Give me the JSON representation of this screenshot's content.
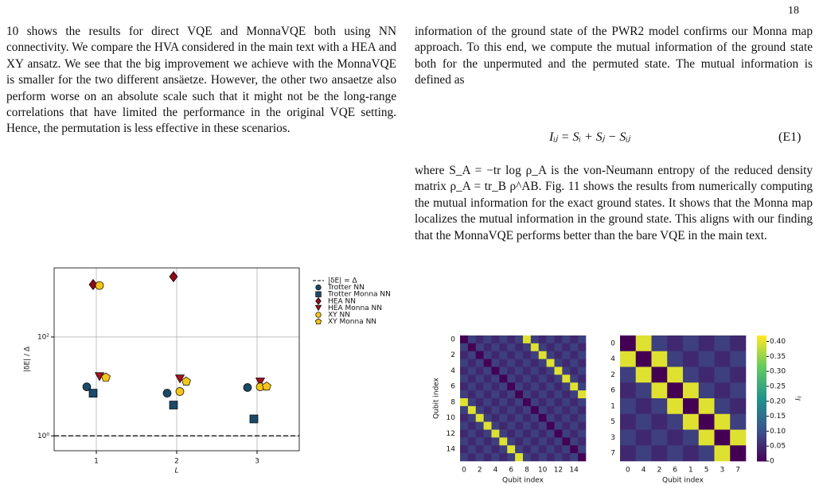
{
  "page_number": "18",
  "left_text": "10 shows the results for direct VQE and MonnaVQE both using NN connectivity. We compare the HVA considered in the main text with a HEA and XY ansatz. We see that the big improvement we achieve with the MonnaVQE is smaller for the two different ansäetze. However, the other two ansaetze also perform worse on an absolute scale such that it might not be the long-range correlations that have limited the performance in the original VQE setting. Hence, the permutation is less effective in these scenarios.",
  "right_text_1": "information of the ground state of the PWR2 model confirms our Monna map approach. To this end, we compute the mutual information of the ground state both for the unpermuted and the permuted state. The mutual information is defined as",
  "equation": {
    "text": "Iᵢⱼ = Sᵢ + Sⱼ − Sᵢⱼ",
    "label": "(E1)"
  },
  "right_text_2": "where S_A = −tr log ρ_A is the von-Neumann entropy of the reduced density matrix ρ_A = tr_B ρ^AB. Fig. 11 shows the results from numerically computing the mutual information for the exact ground states. It shows that the Monna map localizes the mutual information in the ground state. This aligns with our finding that the MonnaVQE performs better than the bare VQE in the main text.",
  "chart_data": [
    {
      "type": "scatter",
      "xlabel": "L",
      "ylabel": "|δE| / Δ",
      "log_y": true,
      "grid": true,
      "x": [
        1,
        2,
        3
      ],
      "xlim": [
        0.475,
        3.525
      ],
      "xticks": [
        1,
        2,
        3
      ],
      "ylim": [
        0.5,
        2500
      ],
      "yticks": [
        {
          "value": 1,
          "label": "10⁰"
        },
        {
          "value": 100,
          "label": "10²"
        }
      ],
      "reference_line": {
        "name": "|δE| = Δ",
        "value": 1,
        "color": "#000000"
      },
      "series": [
        {
          "name": "Trotter NN",
          "color": "#1b4a68",
          "marker": "circle",
          "values": [
            9.8,
            7.3,
            9.5
          ]
        },
        {
          "name": "Trotter Monna NN",
          "color": "#1b4a68",
          "marker": "square",
          "values": [
            7.3,
            4.2,
            2.2
          ]
        },
        {
          "name": "HEA NN",
          "color": "#8b0a1a",
          "marker": "diamond",
          "values": [
            1150,
            1660,
            null
          ]
        },
        {
          "name": "HEA Monna NN",
          "color": "#a3101e",
          "marker": "triangle-down",
          "values": [
            15.8,
            14.2,
            12.3
          ]
        },
        {
          "name": "XY NN",
          "color": "#f5c518",
          "marker": "circle",
          "values": [
            1100,
            7.9,
            9.8
          ]
        },
        {
          "name": "XY Monna NN",
          "color": "#f5c518",
          "marker": "pentagon",
          "values": [
            15.2,
            12.6,
            10
          ]
        }
      ]
    },
    {
      "type": "heatmap",
      "xlabel": "Qubit index",
      "ylabel": "Qubit index",
      "colormap": "viridis",
      "clim": [
        0,
        0.42
      ],
      "categories": [
        0,
        null,
        2,
        null,
        4,
        null,
        6,
        null,
        8,
        null,
        10,
        null,
        12,
        null,
        14,
        null
      ],
      "matrix": [
        [
          0,
          0.08,
          0.05,
          0.08,
          0.05,
          0.08,
          0.05,
          0.08,
          0.4,
          0.08,
          0.05,
          0.08,
          0.05,
          0.08,
          0.05,
          0.08
        ],
        [
          0.08,
          0,
          0.08,
          0.05,
          0.08,
          0.05,
          0.08,
          0.05,
          0.08,
          0.4,
          0.08,
          0.05,
          0.08,
          0.05,
          0.08,
          0.05
        ],
        [
          0.05,
          0.08,
          0,
          0.08,
          0.05,
          0.08,
          0.05,
          0.08,
          0.05,
          0.08,
          0.4,
          0.08,
          0.05,
          0.08,
          0.05,
          0.08
        ],
        [
          0.08,
          0.05,
          0.08,
          0,
          0.08,
          0.05,
          0.08,
          0.05,
          0.08,
          0.05,
          0.08,
          0.4,
          0.08,
          0.05,
          0.08,
          0.05
        ],
        [
          0.05,
          0.08,
          0.05,
          0.08,
          0,
          0.08,
          0.05,
          0.08,
          0.05,
          0.08,
          0.05,
          0.08,
          0.4,
          0.08,
          0.05,
          0.08
        ],
        [
          0.08,
          0.05,
          0.08,
          0.05,
          0.08,
          0,
          0.08,
          0.05,
          0.08,
          0.05,
          0.08,
          0.05,
          0.08,
          0.4,
          0.08,
          0.05
        ],
        [
          0.05,
          0.08,
          0.05,
          0.08,
          0.05,
          0.08,
          0,
          0.08,
          0.05,
          0.08,
          0.05,
          0.08,
          0.05,
          0.08,
          0.4,
          0.08
        ],
        [
          0.08,
          0.05,
          0.08,
          0.05,
          0.08,
          0.05,
          0.08,
          0,
          0.08,
          0.05,
          0.08,
          0.05,
          0.08,
          0.05,
          0.08,
          0.4
        ],
        [
          0.4,
          0.08,
          0.05,
          0.08,
          0.05,
          0.08,
          0.05,
          0.08,
          0,
          0.08,
          0.05,
          0.08,
          0.05,
          0.08,
          0.05,
          0.08
        ],
        [
          0.08,
          0.4,
          0.08,
          0.05,
          0.08,
          0.05,
          0.08,
          0.05,
          0.08,
          0,
          0.08,
          0.05,
          0.08,
          0.05,
          0.08,
          0.05
        ],
        [
          0.05,
          0.08,
          0.4,
          0.08,
          0.05,
          0.08,
          0.05,
          0.08,
          0.05,
          0.08,
          0,
          0.08,
          0.05,
          0.08,
          0.05,
          0.08
        ],
        [
          0.08,
          0.05,
          0.08,
          0.4,
          0.08,
          0.05,
          0.08,
          0.05,
          0.08,
          0.05,
          0.08,
          0,
          0.08,
          0.05,
          0.08,
          0.05
        ],
        [
          0.05,
          0.08,
          0.05,
          0.08,
          0.4,
          0.08,
          0.05,
          0.08,
          0.05,
          0.08,
          0.05,
          0.08,
          0,
          0.08,
          0.05,
          0.08
        ],
        [
          0.08,
          0.05,
          0.08,
          0.05,
          0.08,
          0.4,
          0.08,
          0.05,
          0.08,
          0.05,
          0.08,
          0.05,
          0.08,
          0,
          0.08,
          0.05
        ],
        [
          0.05,
          0.08,
          0.05,
          0.08,
          0.05,
          0.08,
          0.4,
          0.08,
          0.05,
          0.08,
          0.05,
          0.08,
          0.05,
          0.08,
          0,
          0.08
        ],
        [
          0.08,
          0.05,
          0.08,
          0.05,
          0.08,
          0.05,
          0.08,
          0.4,
          0.08,
          0.05,
          0.08,
          0.05,
          0.08,
          0.05,
          0.08,
          0
        ]
      ]
    },
    {
      "type": "heatmap",
      "xlabel": "Qubit index",
      "colormap": "viridis",
      "clim": [
        0,
        0.42
      ],
      "categories": [
        0,
        4,
        2,
        6,
        1,
        5,
        3,
        7
      ],
      "matrix": [
        [
          0,
          0.4,
          0.08,
          0.05,
          0.08,
          0.05,
          0.08,
          0.05
        ],
        [
          0.4,
          0,
          0.4,
          0.08,
          0.05,
          0.08,
          0.05,
          0.08
        ],
        [
          0.08,
          0.4,
          0,
          0.4,
          0.08,
          0.05,
          0.08,
          0.05
        ],
        [
          0.05,
          0.08,
          0.4,
          0,
          0.4,
          0.08,
          0.05,
          0.08
        ],
        [
          0.08,
          0.05,
          0.08,
          0.4,
          0,
          0.4,
          0.08,
          0.05
        ],
        [
          0.05,
          0.08,
          0.05,
          0.08,
          0.4,
          0,
          0.4,
          0.08
        ],
        [
          0.08,
          0.05,
          0.08,
          0.05,
          0.08,
          0.4,
          0,
          0.4
        ],
        [
          0.05,
          0.08,
          0.05,
          0.08,
          0.05,
          0.08,
          0.4,
          0
        ]
      ],
      "colorbar": {
        "label": "Iᵢⱼ",
        "ticks": [
          0,
          0.05,
          {
            "value": 0.1,
            "label": "0.10"
          },
          0.15,
          {
            "value": 0.2,
            "label": "0.20"
          },
          0.25,
          {
            "value": 0.3,
            "label": "0.30"
          },
          0.35,
          {
            "value": 0.4,
            "label": "0.40"
          }
        ]
      }
    }
  ]
}
